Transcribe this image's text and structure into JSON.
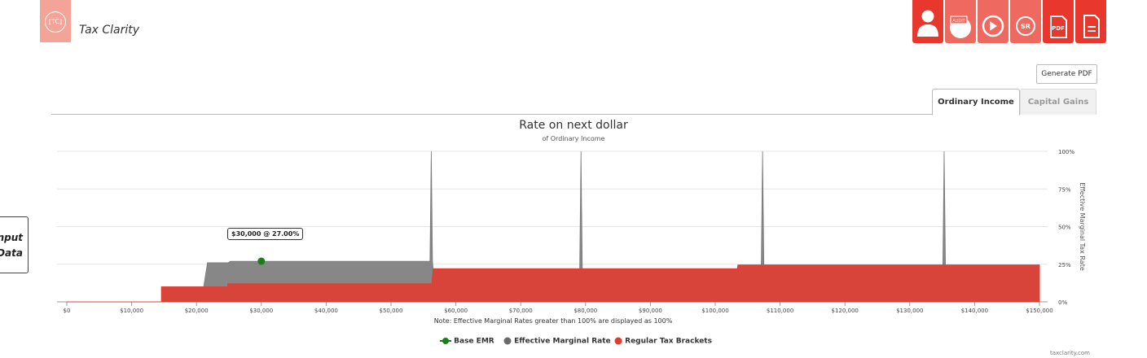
{
  "app": {
    "logo_text": "TC",
    "title": "Tax Clarity"
  },
  "toolbar": {
    "buttons": [
      {
        "name": "profile-button",
        "icon": "person-icon",
        "label": ""
      },
      {
        "name": "audit-button",
        "icon": "audit-icon",
        "label": "AUDIT"
      },
      {
        "name": "play-button",
        "icon": "play-icon",
        "label": ""
      },
      {
        "name": "sr-button",
        "icon": "sr-icon",
        "label": "SR"
      },
      {
        "name": "pdf-button",
        "icon": "pdf-icon",
        "label": "PDF"
      },
      {
        "name": "document-button",
        "icon": "document-icon",
        "label": ""
      }
    ],
    "color": "#e8382d"
  },
  "generate_pdf": "Generate PDF",
  "tabs": {
    "active": "Ordinary Income",
    "inactive": "Capital Gains"
  },
  "side_panel": {
    "line1": "Input",
    "line2": "Data"
  },
  "note": "Note: Effective Marginal Rates greater than 100% are displayed as 100%",
  "footer": "taxclarity.com",
  "tooltip": "$30,000 @ 27.00%",
  "chart_data": {
    "type": "area",
    "title": "Rate on next dollar",
    "subtitle": "of Ordinary Income",
    "ylabel": "Effective Marginal Tax Rate",
    "xlim": [
      0,
      150000
    ],
    "ylim": [
      0,
      100
    ],
    "x_ticks": [
      "$0",
      "$10,000",
      "$20,000",
      "$30,000",
      "$40,000",
      "$50,000",
      "$60,000",
      "$70,000",
      "$80,000",
      "$90,000",
      "$100,000",
      "$110,000",
      "$120,000",
      "$130,000",
      "$140,000",
      "$150,000"
    ],
    "y_ticks": [
      "0%",
      "25%",
      "50%",
      "75%",
      "100%"
    ],
    "series": [
      {
        "name": "Effective Marginal Rate",
        "color": "#7a7a7a",
        "points": [
          [
            0,
            0
          ],
          [
            14600,
            0
          ],
          [
            14600,
            10
          ],
          [
            21100,
            10
          ],
          [
            21700,
            26
          ],
          [
            24900,
            26
          ],
          [
            25200,
            27
          ],
          [
            56000,
            27
          ],
          [
            56200,
            100
          ],
          [
            56400,
            27
          ],
          [
            56500,
            22
          ],
          [
            79100,
            22
          ],
          [
            79300,
            100
          ],
          [
            79500,
            22
          ],
          [
            103400,
            22
          ],
          [
            103500,
            24.5
          ],
          [
            107100,
            24.5
          ],
          [
            107300,
            100
          ],
          [
            107500,
            24.5
          ],
          [
            135100,
            24.5
          ],
          [
            135300,
            100
          ],
          [
            135500,
            24.5
          ],
          [
            150000,
            24.5
          ]
        ]
      },
      {
        "name": "Regular Tax Brackets",
        "color": "#e8382d",
        "points": [
          [
            0,
            0
          ],
          [
            14600,
            0
          ],
          [
            14600,
            10
          ],
          [
            24800,
            10
          ],
          [
            24800,
            12
          ],
          [
            56300,
            12
          ],
          [
            56500,
            22
          ],
          [
            103400,
            22
          ],
          [
            103500,
            24.5
          ],
          [
            150000,
            24.5
          ]
        ]
      }
    ],
    "base_point": {
      "name": "Base EMR",
      "x": 30000,
      "y": 27,
      "color": "#1a7f1a"
    },
    "legend": [
      "Base EMR",
      "Effective Marginal Rate",
      "Regular Tax Brackets"
    ],
    "legend_colors": [
      "#1a7f1a",
      "#6b6b6b",
      "#e8382d"
    ],
    "legend_position": "bottom-center",
    "grid": true
  }
}
